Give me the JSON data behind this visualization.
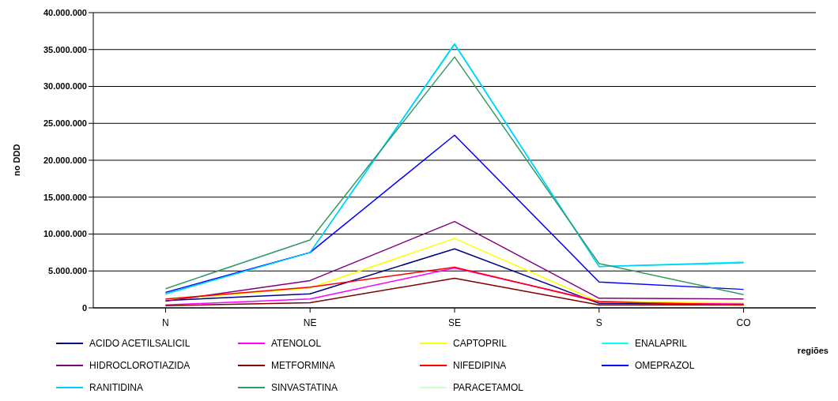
{
  "chart_data": {
    "type": "line",
    "xlabel": "regiões",
    "ylabel": "no DDD",
    "categories": [
      "N",
      "NE",
      "SE",
      "S",
      "CO"
    ],
    "series": [
      {
        "name": "ACIDO ACETILSALICIL",
        "color": "#000080",
        "values": [
          1000000,
          1900000,
          8000000,
          600000,
          500000
        ]
      },
      {
        "name": "ATENOLOL",
        "color": "#ff00ff",
        "values": [
          400000,
          1200000,
          5400000,
          900000,
          500000
        ]
      },
      {
        "name": "CAPTOPRIL",
        "color": "#ffff00",
        "values": [
          1100000,
          2700000,
          9400000,
          800000,
          700000
        ]
      },
      {
        "name": "ENALAPRIL",
        "color": "#00ffff",
        "values": [
          1900000,
          7500000,
          35800000,
          5600000,
          6200000
        ]
      },
      {
        "name": "HIDROCLOROTIAZIDA",
        "color": "#800080",
        "values": [
          900000,
          3700000,
          11700000,
          1300000,
          1200000
        ]
      },
      {
        "name": "METFORMINA",
        "color": "#800000",
        "values": [
          300000,
          700000,
          4000000,
          400000,
          400000
        ]
      },
      {
        "name": "NIFEDIPINA",
        "color": "#ff0000",
        "values": [
          1200000,
          2800000,
          5500000,
          800000,
          400000
        ]
      },
      {
        "name": "OMEPRAZOL",
        "color": "#0000ff",
        "values": [
          2100000,
          7500000,
          23400000,
          3500000,
          2500000
        ]
      },
      {
        "name": "RANITIDINA",
        "color": "#00ccff",
        "values": [
          1900000,
          7500000,
          35700000,
          5600000,
          6100000
        ]
      },
      {
        "name": "SINVASTATINA",
        "color": "#339966",
        "values": [
          2600000,
          9200000,
          34000000,
          6000000,
          1800000
        ]
      },
      {
        "name": "PARACETAMOL",
        "color": "#ccffcc",
        "values": [
          null,
          null,
          null,
          null,
          null
        ]
      }
    ],
    "ylim": [
      0,
      40000000
    ],
    "yticks": [
      {
        "value": 0,
        "label": "0"
      },
      {
        "value": 5000000,
        "label": "5.000.000"
      },
      {
        "value": 10000000,
        "label": "10.000.000"
      },
      {
        "value": 15000000,
        "label": "15.000.000"
      },
      {
        "value": 20000000,
        "label": "20.000.000"
      },
      {
        "value": 25000000,
        "label": "25.000.000"
      },
      {
        "value": 30000000,
        "label": "30.000.000"
      },
      {
        "value": 35000000,
        "label": "35.000.000"
      },
      {
        "value": 40000000,
        "label": "40.000.000"
      }
    ],
    "grid": "y",
    "legend": "bottom",
    "marker": "none",
    "line_style": "solid"
  }
}
